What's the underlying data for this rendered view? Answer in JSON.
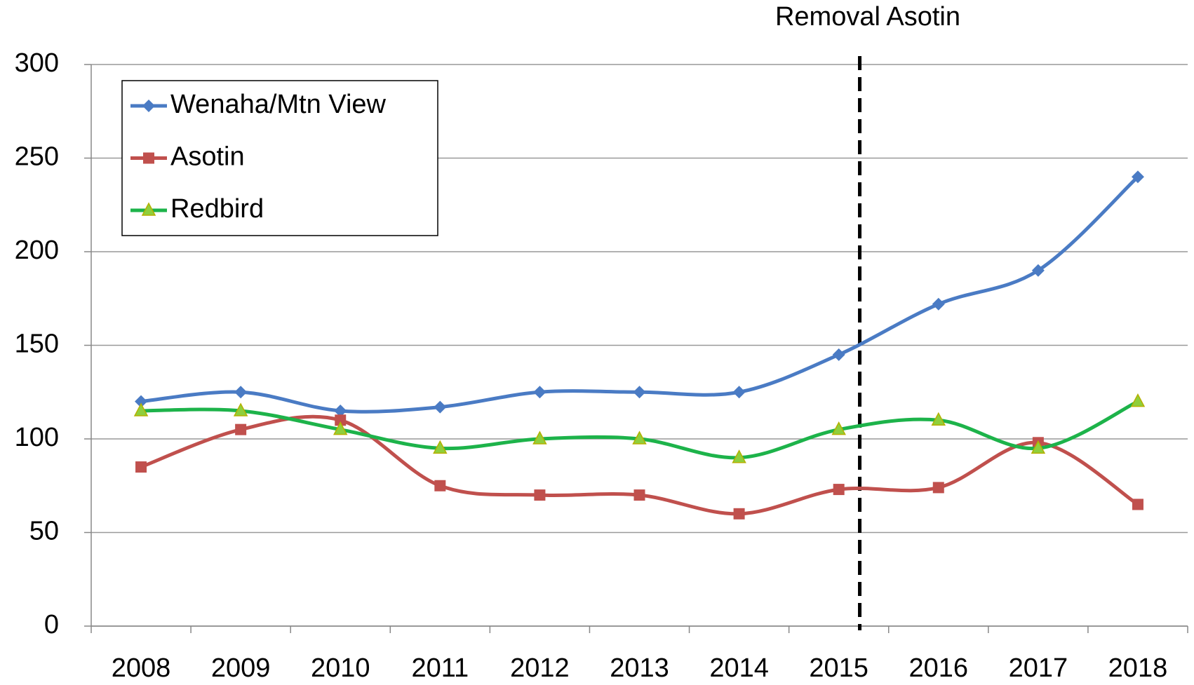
{
  "chart_data": {
    "type": "line",
    "annotation": "Removal Asotin",
    "categories": [
      "2008",
      "2009",
      "2010",
      "2011",
      "2012",
      "2013",
      "2014",
      "2015",
      "2016",
      "2017",
      "2018"
    ],
    "series": [
      {
        "name": "Wenaha/Mtn View",
        "color": "#4a7bc4",
        "marker": "diamond",
        "values": [
          120,
          125,
          115,
          117,
          125,
          125,
          125,
          145,
          172,
          190,
          240
        ]
      },
      {
        "name": "Asotin",
        "color": "#c0504d",
        "marker": "square",
        "values": [
          85,
          105,
          110,
          75,
          70,
          70,
          60,
          73,
          74,
          98,
          65
        ]
      },
      {
        "name": "Redbird",
        "color": "#1db34a",
        "marker": "triangle",
        "values": [
          115,
          115,
          105,
          95,
          100,
          100,
          90,
          105,
          110,
          95,
          120
        ]
      }
    ],
    "ylim": [
      0,
      300
    ],
    "yticks": [
      0,
      50,
      100,
      150,
      200,
      250,
      300
    ],
    "grid": true,
    "legend": "upper left"
  }
}
